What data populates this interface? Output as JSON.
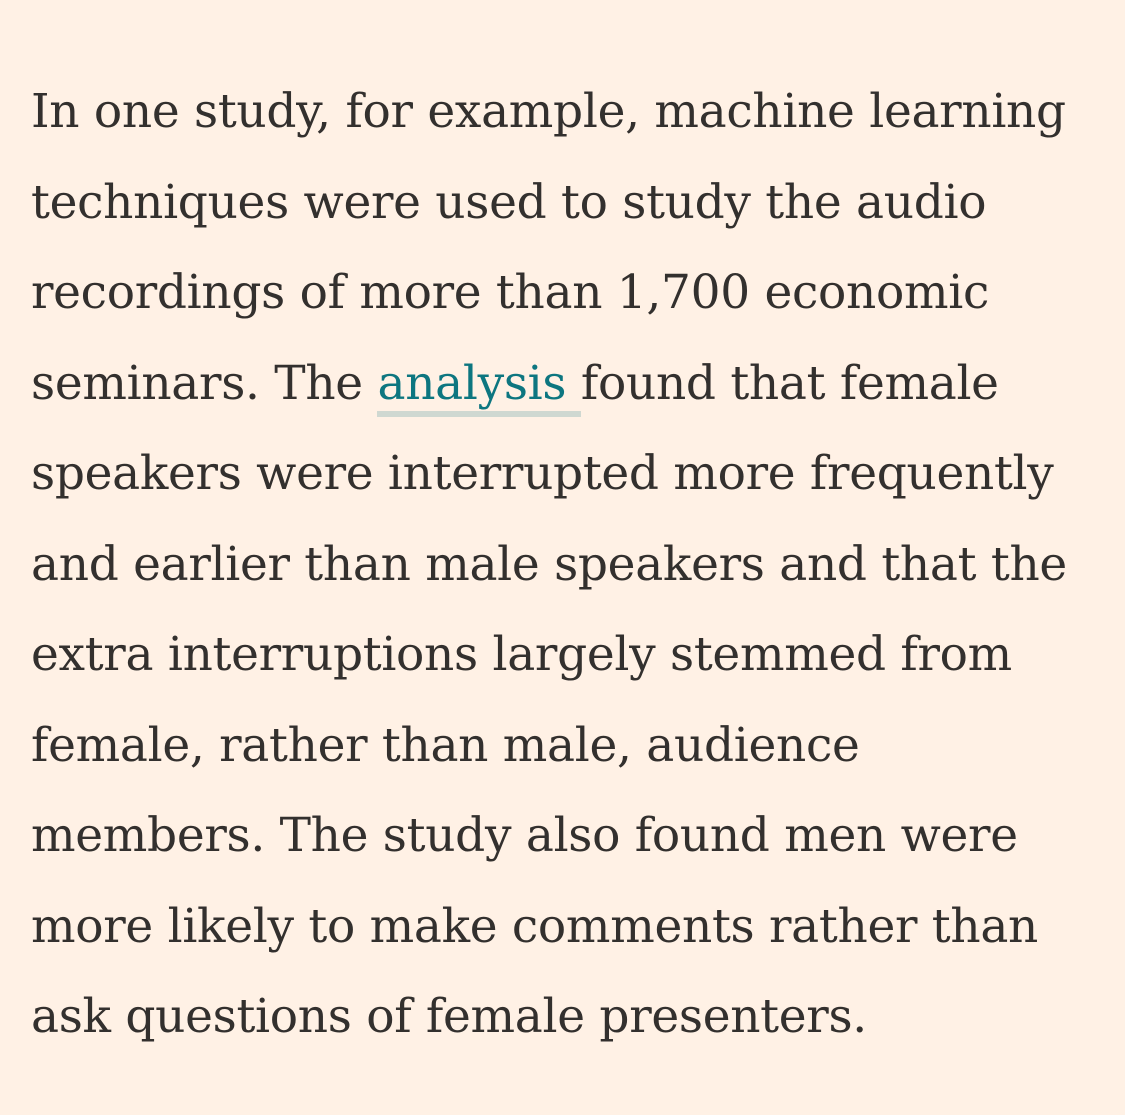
{
  "article": {
    "lines": [
      {
        "text": "In one study, for example, machine learning"
      },
      {
        "text": "techniques were used to study the audio"
      },
      {
        "text": "recordings of more than 1,700 economic"
      },
      {
        "before": "seminars. The ",
        "link": "analysis ",
        "after": "found that female"
      },
      {
        "text": "speakers were interrupted more frequently"
      },
      {
        "text": "and earlier than male speakers and that the"
      },
      {
        "text": "extra interruptions largely stemmed from"
      },
      {
        "text": "female, rather than male, audience"
      },
      {
        "text": "members. The study also found men were"
      },
      {
        "text": "more likely to make comments rather than"
      },
      {
        "text": "ask questions of female presenters."
      }
    ]
  },
  "colors": {
    "background": "#FFF1E5",
    "text": "#33302E",
    "link": "#0D7680"
  }
}
